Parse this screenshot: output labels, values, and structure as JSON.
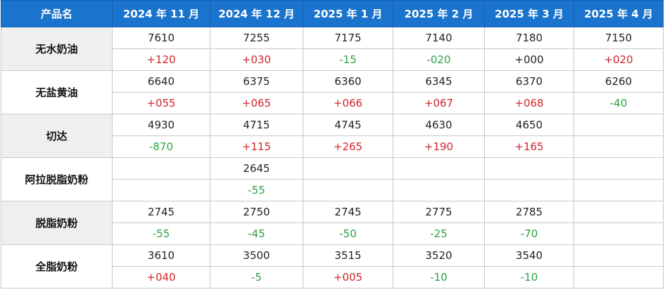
{
  "table": {
    "header": [
      "产品名",
      "2024 年 11 月",
      "2024 年 12 月",
      "2025 年 1 月",
      "2025 年 2 月",
      "2025 年 3 月",
      "2025 年 4 月"
    ],
    "colors": {
      "up": "#d0242a",
      "down": "#2ea043",
      "flat": "#222222",
      "header": "#1a73cc"
    },
    "rows": [
      {
        "name": "无水奶油",
        "prices": [
          7610,
          7255,
          7175,
          7140,
          7180,
          7150
        ],
        "changes": [
          "+120",
          "+030",
          "-15",
          "-020",
          "+000",
          "+020"
        ]
      },
      {
        "name": "无盐黄油",
        "prices": [
          6640,
          6375,
          6360,
          6345,
          6370,
          6260
        ],
        "changes": [
          "+055",
          "+065",
          "+066",
          "+067",
          "+068",
          "-40"
        ]
      },
      {
        "name": "切达",
        "prices": [
          4930,
          4715,
          4745,
          4630,
          4650,
          null
        ],
        "changes": [
          "-870",
          "+115",
          "+265",
          "+190",
          "+165",
          null
        ]
      },
      {
        "name": "阿拉脱脂奶粉",
        "prices": [
          null,
          2645,
          null,
          null,
          null,
          null
        ],
        "changes": [
          null,
          "-55",
          null,
          null,
          null,
          null
        ]
      },
      {
        "name": "脱脂奶粉",
        "prices": [
          2745,
          2750,
          2745,
          2775,
          2785,
          null
        ],
        "changes": [
          "-55",
          "-45",
          "-50",
          "-25",
          "-70",
          null
        ]
      },
      {
        "name": "全脂奶粉",
        "prices": [
          3610,
          3500,
          3515,
          3520,
          3540,
          null
        ],
        "changes": [
          "+040",
          "-5",
          "+005",
          "-10",
          "-10",
          null
        ]
      }
    ]
  }
}
